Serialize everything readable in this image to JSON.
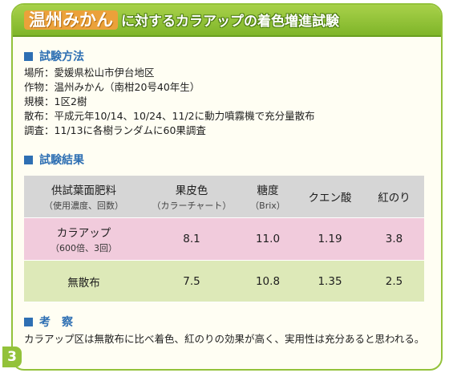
{
  "title": {
    "main": "温州みかん",
    "sub": "に対するカラアップの着色増進試験"
  },
  "method": {
    "heading": "試験方法",
    "lines": [
      "場所：愛媛県松山市伊台地区",
      "作物：温州みかん（南柑20号40年生）",
      "規模：1区2樹",
      "散布：平成元年10/14、10/24、11/2に動力噴霧機で充分量散布",
      "調査：11/13に各樹ランダムに60果調査"
    ]
  },
  "results": {
    "heading": "試験結果",
    "headers": [
      {
        "main": "供試葉面肥料",
        "sub": "（使用濃度、回数）"
      },
      {
        "main": "果皮色",
        "sub": "（カラーチャート）"
      },
      {
        "main": "糖度",
        "sub": "（Brix）"
      },
      {
        "main": "クエン酸",
        "sub": ""
      },
      {
        "main": "紅のり",
        "sub": ""
      }
    ],
    "rows": [
      {
        "name": "カラアップ",
        "note": "（600倍、3回）",
        "values": [
          "8.1",
          "11.0",
          "1.19",
          "3.8"
        ]
      },
      {
        "name": "無散布",
        "note": "",
        "values": [
          "7.5",
          "10.8",
          "1.35",
          "2.5"
        ]
      }
    ]
  },
  "consideration": {
    "heading": "考　察",
    "text": "カラアップ区は無散布に比べ着色、紅のりの効果が高く、実用性は充分あると思われる。"
  },
  "page_number": "3",
  "colors": {
    "header_green": "#8cc13a",
    "title_orange": "#eba13a",
    "section_blue": "#2e6fb3",
    "row_pink": "#f1cbdc",
    "row_green": "#dde9b8",
    "header_gray": "#d6d6d6"
  }
}
